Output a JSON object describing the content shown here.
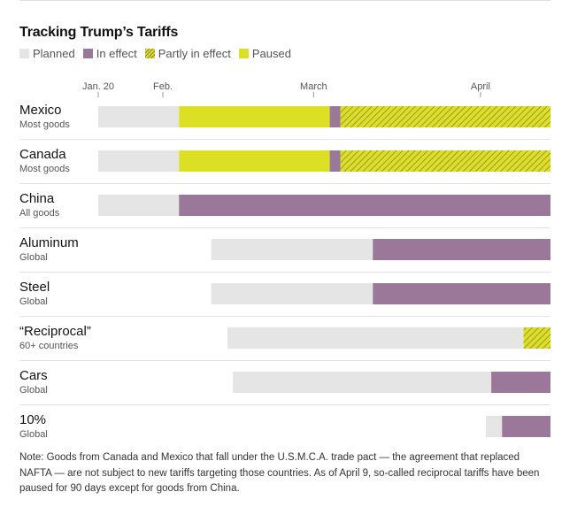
{
  "title": "Tracking Trump’s Tariffs",
  "legend": [
    {
      "label": "Planned",
      "key": "planned"
    },
    {
      "label": "In effect",
      "key": "in_effect"
    },
    {
      "label": "Partly in effect",
      "key": "partly"
    },
    {
      "label": "Paused",
      "key": "paused"
    }
  ],
  "colors": {
    "planned": "#e5e5e5",
    "in_effect": "#9b7899",
    "paused": "#dbe024",
    "partly_base": "#dbe024",
    "partly_hatch": "#8e8346",
    "axis_text": "#555555",
    "divider": "#e2e2e2"
  },
  "note": "Note: Goods from Canada and Mexico that fall under the U.S.M.C.A. trade pact — the agreement that replaced NAFTA — are not subject to new tariffs targeting those countries. As of April 9, so-called reciprocal tariffs have been paused for 90 days except for goods from China.",
  "chart_data": {
    "type": "bar",
    "orientation": "horizontal-timeline",
    "x_axis": {
      "ticks": [
        {
          "label": "Jan. 20",
          "date": "2025-01-20"
        },
        {
          "label": "Feb.",
          "date": "2025-02-01"
        },
        {
          "label": "March",
          "date": "2025-03-01"
        },
        {
          "label": "April",
          "date": "2025-04-01"
        }
      ],
      "range": [
        "2025-01-20",
        "2025-04-14"
      ]
    },
    "rows": [
      {
        "name": "Mexico",
        "sub": "Most goods",
        "segments": [
          {
            "status": "planned",
            "start": "2025-01-20",
            "end": "2025-02-04"
          },
          {
            "status": "paused",
            "start": "2025-02-04",
            "end": "2025-03-04"
          },
          {
            "status": "in_effect",
            "start": "2025-03-04",
            "end": "2025-03-06"
          },
          {
            "status": "partly",
            "start": "2025-03-06",
            "end": "2025-04-14"
          }
        ]
      },
      {
        "name": "Canada",
        "sub": "Most goods",
        "segments": [
          {
            "status": "planned",
            "start": "2025-01-20",
            "end": "2025-02-04"
          },
          {
            "status": "paused",
            "start": "2025-02-04",
            "end": "2025-03-04"
          },
          {
            "status": "in_effect",
            "start": "2025-03-04",
            "end": "2025-03-06"
          },
          {
            "status": "partly",
            "start": "2025-03-06",
            "end": "2025-04-14"
          }
        ]
      },
      {
        "name": "China",
        "sub": "All goods",
        "segments": [
          {
            "status": "planned",
            "start": "2025-01-20",
            "end": "2025-02-04"
          },
          {
            "status": "in_effect",
            "start": "2025-02-04",
            "end": "2025-04-14"
          }
        ]
      },
      {
        "name": "Aluminum",
        "sub": "Global",
        "segments": [
          {
            "status": "planned",
            "start": "2025-02-10",
            "end": "2025-03-12"
          },
          {
            "status": "in_effect",
            "start": "2025-03-12",
            "end": "2025-04-14"
          }
        ]
      },
      {
        "name": "Steel",
        "sub": "Global",
        "segments": [
          {
            "status": "planned",
            "start": "2025-02-10",
            "end": "2025-03-12"
          },
          {
            "status": "in_effect",
            "start": "2025-03-12",
            "end": "2025-04-14"
          }
        ]
      },
      {
        "name": "“Reciprocal”",
        "sub": "60+ countries",
        "segments": [
          {
            "status": "planned",
            "start": "2025-02-13",
            "end": "2025-04-09"
          },
          {
            "status": "partly",
            "start": "2025-04-09",
            "end": "2025-04-14"
          }
        ]
      },
      {
        "name": "Cars",
        "sub": "Global",
        "segments": [
          {
            "status": "planned",
            "start": "2025-02-14",
            "end": "2025-04-03"
          },
          {
            "status": "in_effect",
            "start": "2025-04-03",
            "end": "2025-04-14"
          }
        ]
      },
      {
        "name": "10%",
        "sub": "Global",
        "segments": [
          {
            "status": "planned",
            "start": "2025-04-02",
            "end": "2025-04-05"
          },
          {
            "status": "in_effect",
            "start": "2025-04-05",
            "end": "2025-04-14"
          }
        ]
      }
    ]
  }
}
